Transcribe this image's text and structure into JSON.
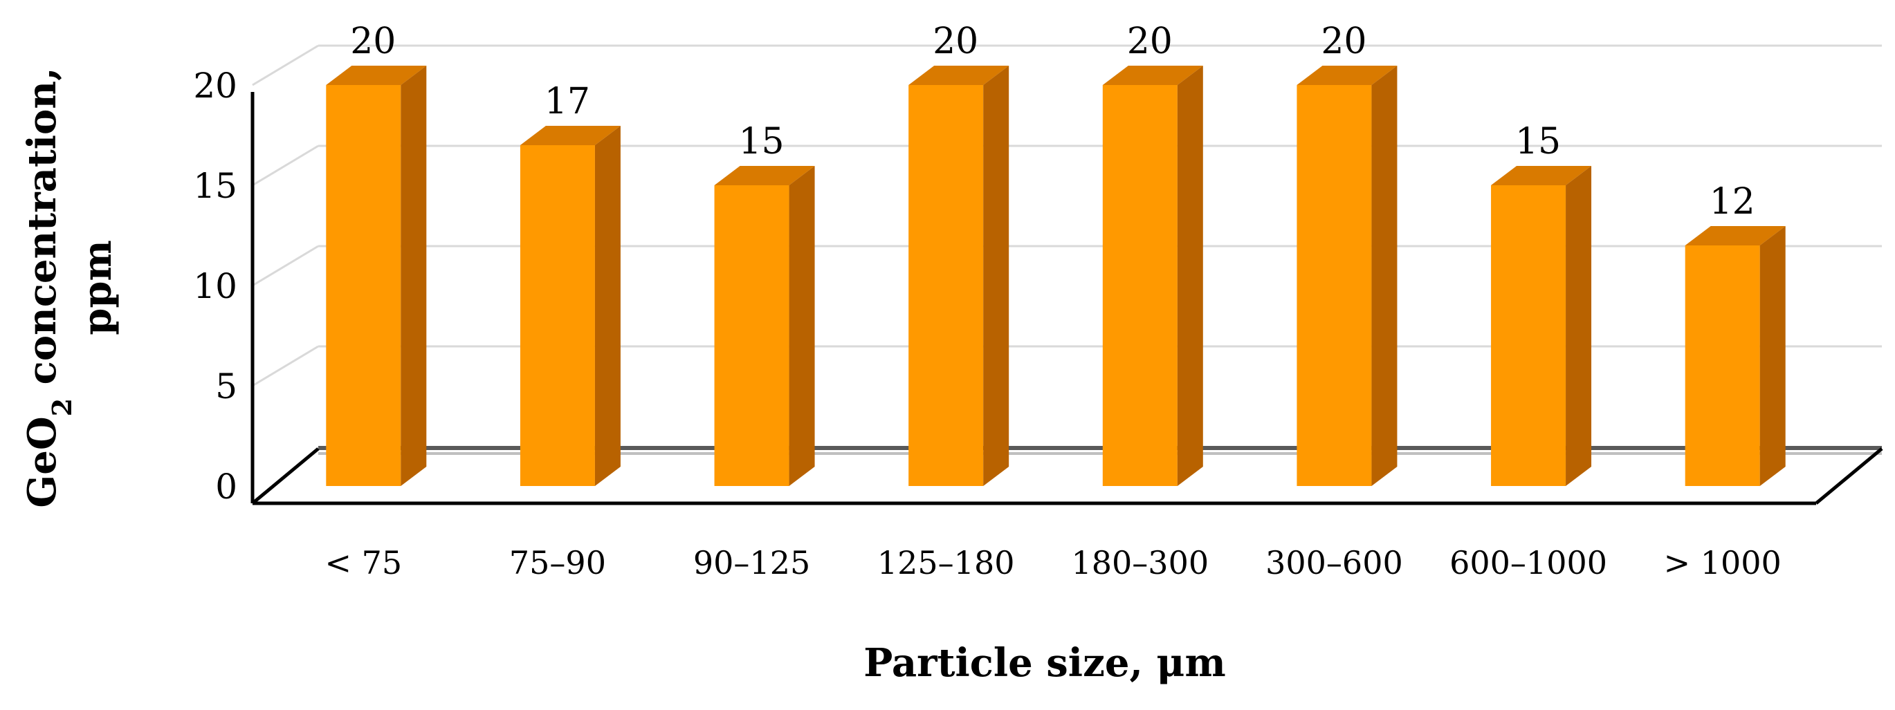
{
  "chart_data": {
    "type": "bar",
    "style": "3d-column",
    "title": "",
    "categories": [
      "< 75",
      "75–90",
      "90–125",
      "125–180",
      "180–300",
      "300–600",
      "600–1000",
      "> 1000"
    ],
    "values": [
      20,
      17,
      15,
      20,
      20,
      20,
      15,
      12
    ],
    "data_labels": [
      "20",
      "17",
      "15",
      "20",
      "20",
      "20",
      "15",
      "12"
    ],
    "xlabel": "Particle size, μm",
    "ylabel": {
      "line1_prefix": "GeO",
      "line1_subscript": "2",
      "line1_suffix": " concentration,",
      "line2": "ppm"
    },
    "yticks": [
      0,
      5,
      10,
      15,
      20
    ],
    "ylim": [
      0,
      20
    ],
    "grid": true,
    "legend": "none",
    "colors": {
      "bar_front": "#FF9900",
      "bar_top": "#D97A00",
      "bar_side": "#B86200",
      "grid": "#D9D9D9",
      "axis": "#000000",
      "text": "#000000"
    }
  }
}
